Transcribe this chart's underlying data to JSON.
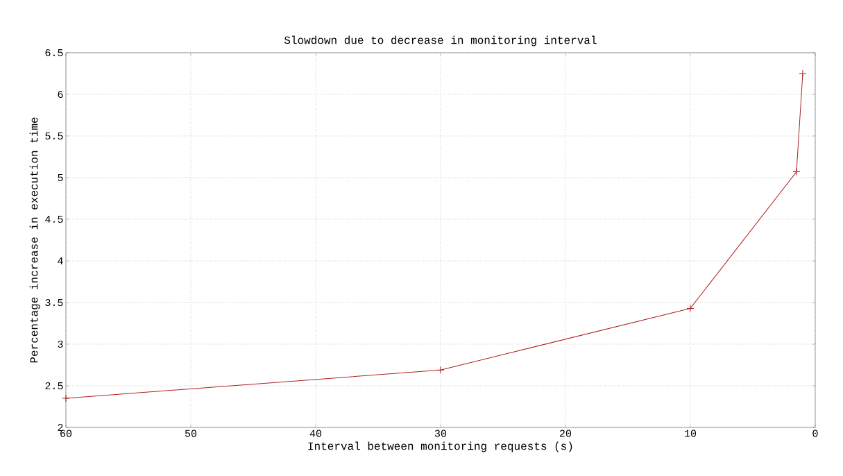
{
  "chart_data": {
    "type": "line",
    "title": "Slowdown due to decrease in monitoring interval",
    "xlabel": "Interval between monitoring requests (s)",
    "ylabel": "Percentage increase in execution time",
    "x": [
      60,
      30,
      10,
      1.5,
      1
    ],
    "series": [
      {
        "color": "#b02020",
        "values": [
          2.35,
          2.69,
          3.43,
          5.07,
          6.25
        ]
      }
    ],
    "xlim": [
      60,
      0
    ],
    "ylim": [
      2,
      6.5
    ],
    "xticks": [
      60,
      50,
      40,
      30,
      20,
      10,
      0
    ],
    "yticks": [
      2,
      2.5,
      3,
      3.5,
      4,
      4.5,
      5,
      5.5,
      6,
      6.5
    ],
    "grid": true,
    "marker": "cross",
    "line_style": "solid"
  }
}
